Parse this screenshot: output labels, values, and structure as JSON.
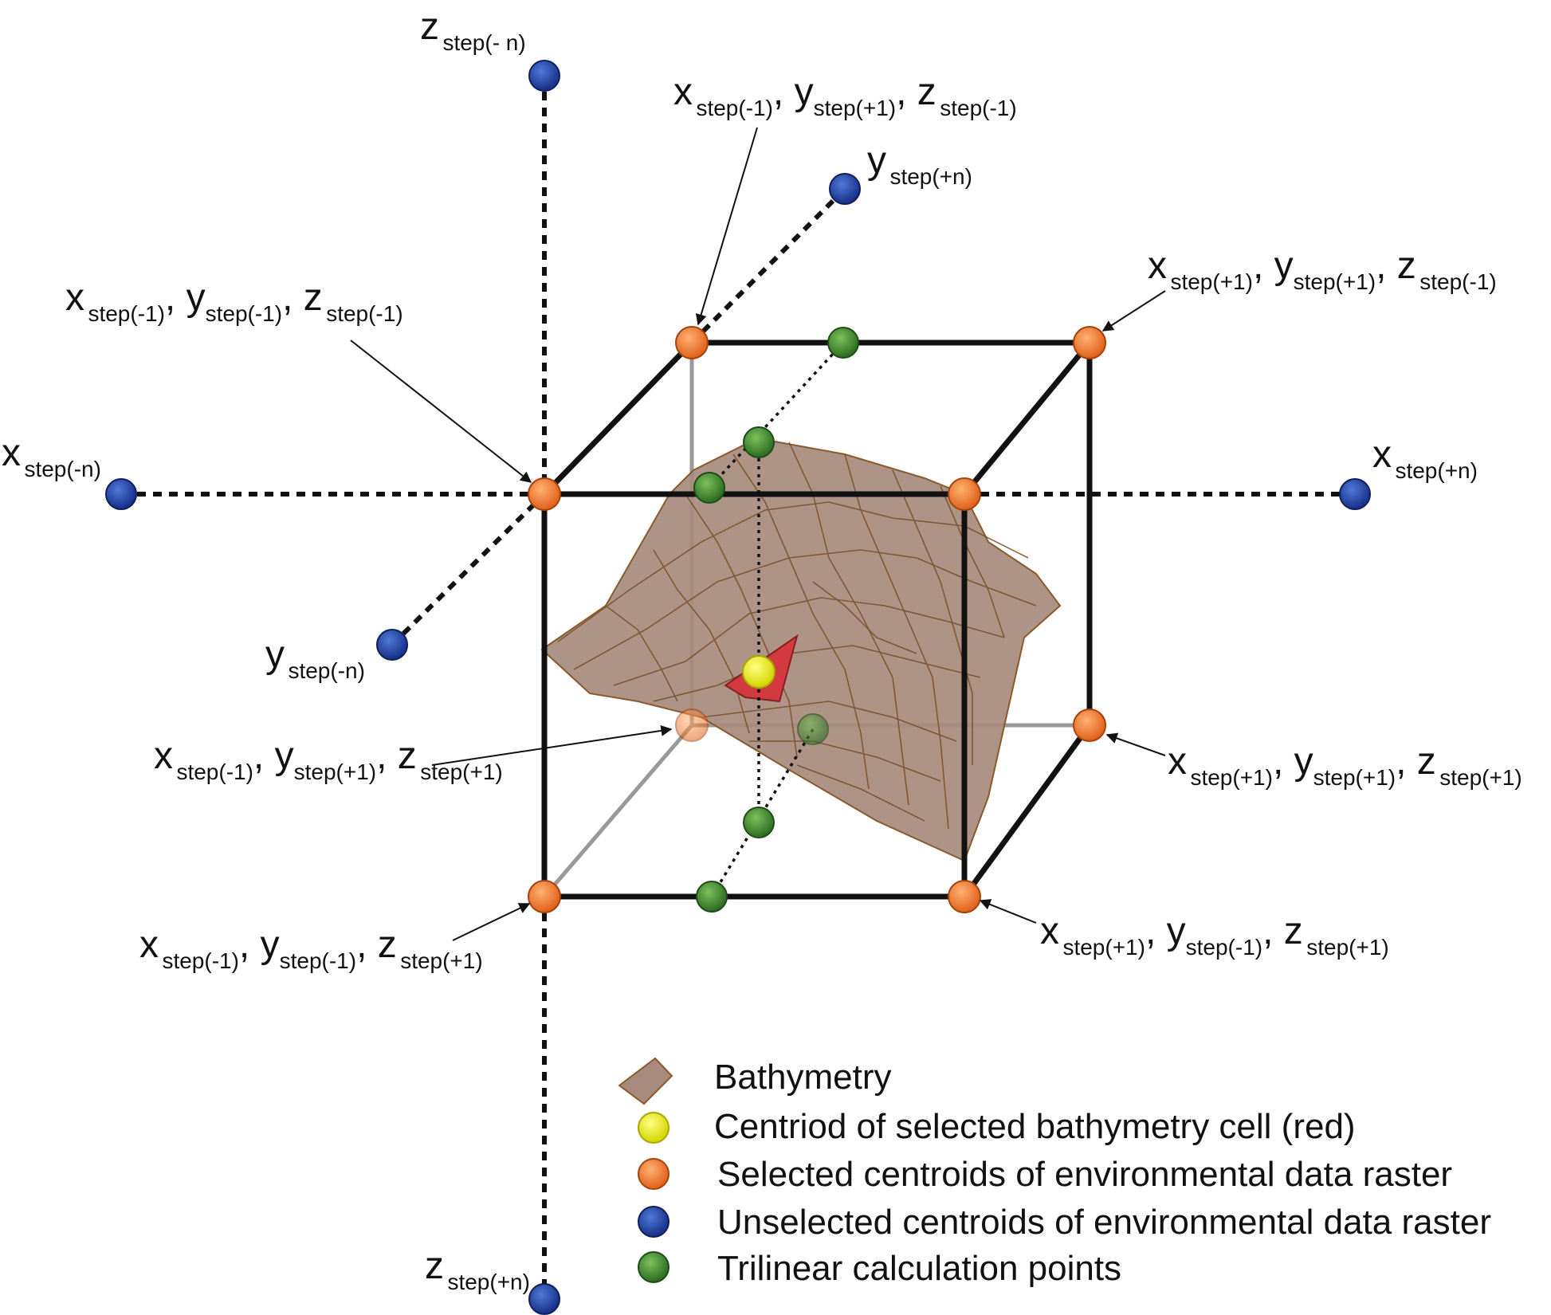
{
  "axis_labels": {
    "z_neg": {
      "v": "z",
      "s": "step(- n)"
    },
    "z_pos": {
      "v": "z",
      "s": "step(+n)"
    },
    "x_neg": {
      "v": "x",
      "s": "step(-n)"
    },
    "x_pos": {
      "v": "x",
      "s": "step(+n)"
    },
    "y_neg": {
      "v": "y",
      "s": "step(-n)"
    },
    "y_pos": {
      "v": "y",
      "s": "step(+n)"
    }
  },
  "corner_labels": {
    "c1": {
      "x": "x",
      "xs": "step(-1)",
      "y": "y",
      "ys": "step(+1)",
      "z": "z",
      "zs": "step(-1)"
    },
    "c2": {
      "x": "x",
      "xs": "step(-1)",
      "y": "y",
      "ys": "step(-1)",
      "z": "z",
      "zs": "step(-1)"
    },
    "c3": {
      "x": "x",
      "xs": "step(+1)",
      "y": "y",
      "ys": "step(+1)",
      "z": "z",
      "zs": "step(-1)"
    },
    "c4": {
      "x": "x",
      "xs": "step(-1)",
      "y": "y",
      "ys": "step(+1)",
      "z": "z",
      "zs": "step(+1)"
    },
    "c5": {
      "x": "x",
      "xs": "step(+1)",
      "y": "y",
      "ys": "step(+1)",
      "z": "z",
      "zs": "step(+1)"
    },
    "c6": {
      "x": "x",
      "xs": "step(-1)",
      "y": "y",
      "ys": "step(-1)",
      "z": "z",
      "zs": "step(+1)"
    },
    "c7": {
      "x": "x",
      "xs": "step(+1)",
      "y": "y",
      "ys": "step(-1)",
      "z": "z",
      "zs": "step(+1)"
    }
  },
  "legend": [
    {
      "label": "Bathymetry",
      "icon": "bathymetry-swatch",
      "color": "#a68b7d"
    },
    {
      "label": "Centriod of selected bathymetry cell (red)",
      "icon": "yellow-dot",
      "color": "#e8e81c"
    },
    {
      "label": "Selected centroids of environmental data raster",
      "icon": "orange-dot",
      "color": "#e8731e"
    },
    {
      "label": "Unselected centroids of environmental data raster",
      "icon": "blue-dot",
      "color": "#2448a6"
    },
    {
      "label": "Trilinear calculation points",
      "icon": "green-dot",
      "color": "#3f8a2e"
    }
  ],
  "colors": {
    "orange": "#e8731e",
    "blue": "#2448a6",
    "green": "#3f8a2e",
    "yellow": "#e8e81c",
    "bathymetry": "#a68b7d",
    "selected_cell": "#d23a3f",
    "mesh_line": "#8a5a2c"
  }
}
